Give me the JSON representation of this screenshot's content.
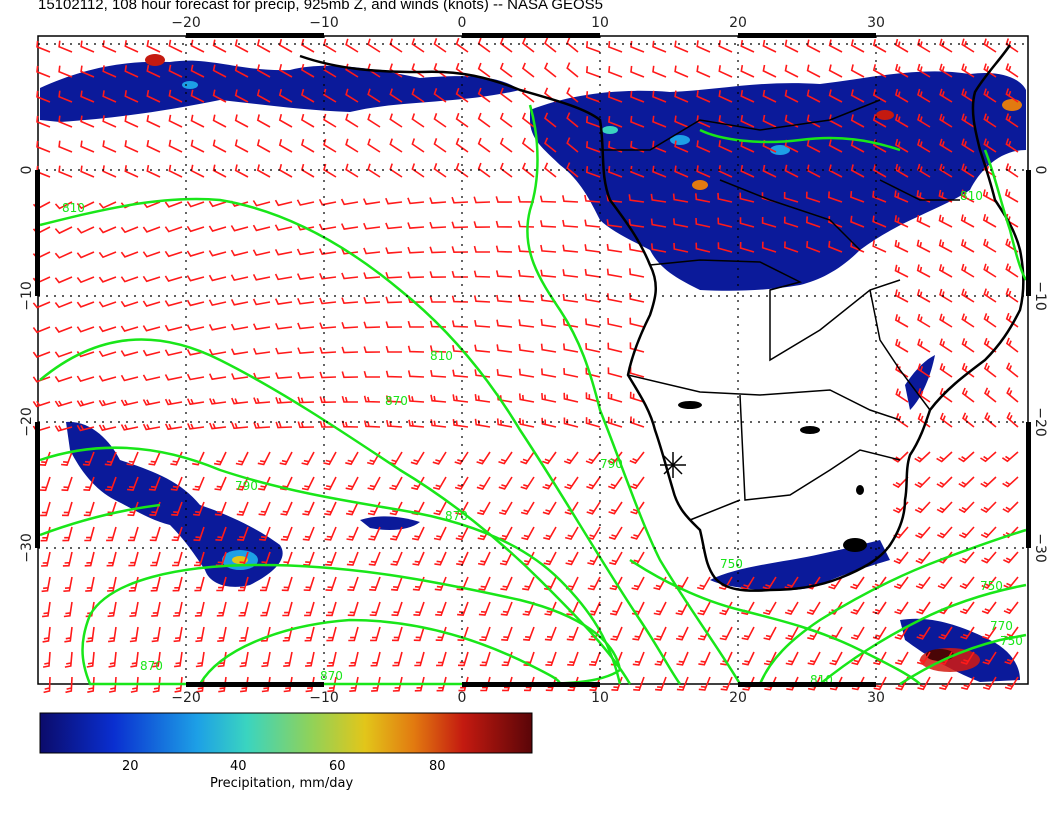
{
  "title": "15102112, 108 hour forecast for precip, 925mb Z, and winds (knots) -- NASA GEOS5",
  "axes": {
    "lon_ticks": [
      "−20",
      "−10",
      "0",
      "10",
      "20",
      "30"
    ],
    "lat_ticks": [
      "0",
      "−10",
      "−20",
      "−30"
    ]
  },
  "contours": {
    "labels": [
      "810",
      "810",
      "870",
      "870",
      "870",
      "790",
      "750",
      "750",
      "810",
      "870",
      "810",
      "790",
      "770",
      "750"
    ]
  },
  "colorbar": {
    "title": "Precipitation, mm/day",
    "ticks": [
      "20",
      "40",
      "60",
      "80"
    ],
    "colors": [
      "#0b0b6b",
      "#0a2fd0",
      "#1da0e6",
      "#3ad4c0",
      "#8fd25a",
      "#e2c61a",
      "#e27a10",
      "#c41a10",
      "#5a0508"
    ]
  },
  "colors": {
    "wind_barb": "#ff1a1a",
    "contour": "#19e619",
    "coast": "#000000",
    "precip_base": "#0b1a9a",
    "grid": "#000000"
  }
}
